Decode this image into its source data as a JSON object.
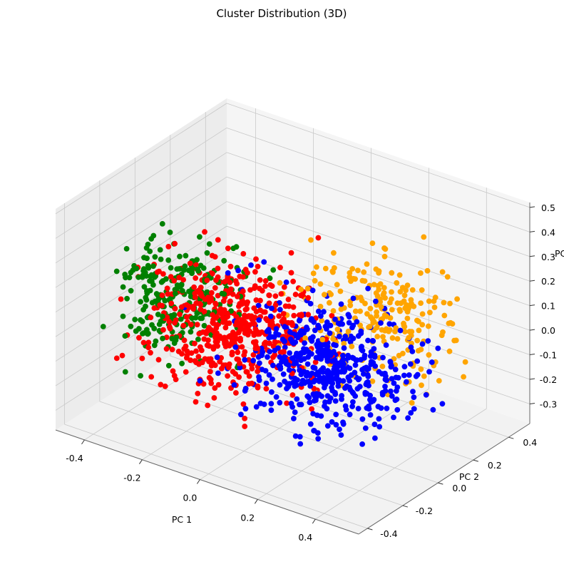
{
  "chart_data": {
    "type": "scatter",
    "projection": "3d",
    "title": "Cluster Distribution (3D)",
    "xlabel": "PC 1",
    "ylabel": "PC 2",
    "zlabel": "PC",
    "xlim": [
      -0.5,
      0.55
    ],
    "ylim": [
      -0.45,
      0.52
    ],
    "zlim": [
      -0.38,
      0.52
    ],
    "xticks": [
      "-0.4",
      "-0.2",
      "0.0",
      "0.2",
      "0.4"
    ],
    "yticks": [
      "-0.4",
      "-0.2",
      "0.0",
      "0.2",
      "0.4"
    ],
    "zticks": [
      "-0.3",
      "-0.2",
      "-0.1",
      "0.0",
      "0.1",
      "0.2",
      "0.3",
      "0.4",
      "0.5"
    ],
    "xtick_values": [
      -0.4,
      -0.2,
      0.0,
      0.2,
      0.4
    ],
    "ytick_values": [
      -0.4,
      -0.2,
      0.0,
      0.2,
      0.4
    ],
    "ztick_values": [
      -0.3,
      -0.2,
      -0.1,
      0.0,
      0.1,
      0.2,
      0.3,
      0.4,
      0.5
    ],
    "grid": true,
    "legend": "none",
    "series": [
      {
        "color": "#008000",
        "center": [
          -0.32,
          -0.05,
          0.05
        ],
        "spread": [
          0.09,
          0.1,
          0.11
        ],
        "count": 260,
        "seed": 11
      },
      {
        "color": "#ff0000",
        "center": [
          -0.13,
          -0.08,
          0.02
        ],
        "spread": [
          0.12,
          0.12,
          0.12
        ],
        "count": 520,
        "seed": 23
      },
      {
        "color": "#ffa500",
        "center": [
          0.22,
          0.22,
          0.05
        ],
        "spread": [
          0.12,
          0.12,
          0.1
        ],
        "count": 240,
        "seed": 37
      },
      {
        "color": "#0000ff",
        "center": [
          0.2,
          -0.05,
          -0.02
        ],
        "spread": [
          0.14,
          0.13,
          0.1
        ],
        "count": 520,
        "seed": 53
      }
    ]
  }
}
